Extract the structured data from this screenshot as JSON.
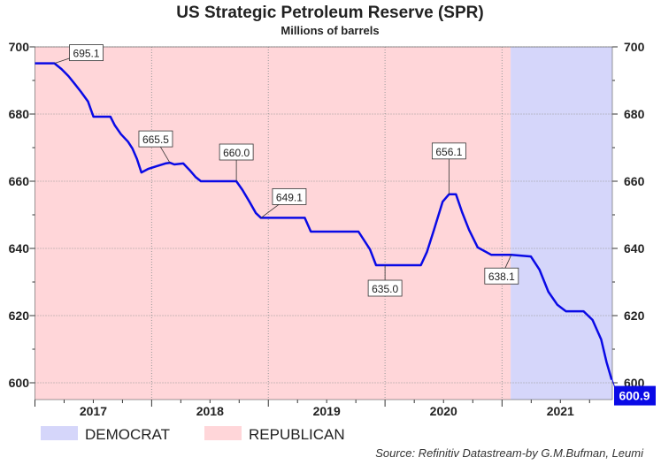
{
  "chart_data": {
    "type": "line",
    "title": "US Strategic Petroleum Reserve (SPR)",
    "subtitle": "Millions of barrels",
    "source": "Source: Refinitiv Datastream-by G.M.Bufman, Leumi",
    "xlim": [
      "2017-01-01",
      "2021-12-12"
    ],
    "ylim": [
      597,
      700
    ],
    "yticks": [
      600,
      620,
      640,
      660,
      680,
      700
    ],
    "xtick_labels": [
      "2017",
      "2018",
      "2019",
      "2020",
      "2021"
    ],
    "grid": true,
    "legend_position": "bottom-left",
    "line_color": "#0a0ae6",
    "shading": [
      {
        "name": "REPUBLICAN",
        "start": "2017-01-01",
        "end": "2021-01-28",
        "color": "#ffd6d9"
      },
      {
        "name": "DEMOCRAT",
        "start": "2021-01-28",
        "end": "2021-12-12",
        "color": "#d5d6fa"
      }
    ],
    "series": [
      {
        "points": [
          [
            "2017-01-01",
            695.1
          ],
          [
            "2017-03-03",
            695.1
          ],
          [
            "2017-03-25",
            693.4
          ],
          [
            "2017-04-16",
            691.3
          ],
          [
            "2017-05-06",
            688.9
          ],
          [
            "2017-05-25",
            686.6
          ],
          [
            "2017-06-16",
            683.7
          ],
          [
            "2017-07-03",
            679.2
          ],
          [
            "2017-08-25",
            679.2
          ],
          [
            "2017-09-08",
            676.6
          ],
          [
            "2017-09-27",
            674.0
          ],
          [
            "2017-10-19",
            671.8
          ],
          [
            "2017-11-02",
            669.7
          ],
          [
            "2017-11-16",
            666.6
          ],
          [
            "2017-11-30",
            662.6
          ],
          [
            "2017-12-22",
            663.7
          ],
          [
            "2018-01-17",
            664.5
          ],
          [
            "2018-02-13",
            665.3
          ],
          [
            "2018-02-27",
            665.5
          ],
          [
            "2018-03-13",
            665.0
          ],
          [
            "2018-04-10",
            665.3
          ],
          [
            "2018-04-29",
            663.4
          ],
          [
            "2018-05-18",
            661.3
          ],
          [
            "2018-06-04",
            660.0
          ],
          [
            "2018-09-23",
            660.0
          ],
          [
            "2018-10-12",
            657.4
          ],
          [
            "2018-11-03",
            653.9
          ],
          [
            "2018-11-23",
            650.5
          ],
          [
            "2018-12-09",
            649.1
          ],
          [
            "2019-04-25",
            649.1
          ],
          [
            "2019-05-14",
            645.0
          ],
          [
            "2019-10-10",
            645.0
          ],
          [
            "2019-11-15",
            639.7
          ],
          [
            "2019-12-04",
            635.0
          ],
          [
            "2020-04-22",
            635.0
          ],
          [
            "2020-05-11",
            638.9
          ],
          [
            "2020-06-02",
            645.5
          ],
          [
            "2020-06-29",
            653.9
          ],
          [
            "2020-07-19",
            656.1
          ],
          [
            "2020-08-10",
            656.1
          ],
          [
            "2020-08-29",
            650.8
          ],
          [
            "2020-09-20",
            645.5
          ],
          [
            "2020-10-17",
            640.3
          ],
          [
            "2020-11-28",
            638.1
          ],
          [
            "2021-01-30",
            638.1
          ],
          [
            "2021-04-01",
            637.6
          ],
          [
            "2021-04-28",
            633.7
          ],
          [
            "2021-05-26",
            627.1
          ],
          [
            "2021-06-23",
            623.2
          ],
          [
            "2021-07-20",
            621.3
          ],
          [
            "2021-09-13",
            621.3
          ],
          [
            "2021-10-11",
            618.7
          ],
          [
            "2021-11-07",
            612.9
          ],
          [
            "2021-11-24",
            606.1
          ],
          [
            "2021-12-10",
            600.9
          ]
        ]
      }
    ],
    "annotations": [
      {
        "label": "695.1",
        "date": "2017-03-03",
        "value": 695.1
      },
      {
        "label": "665.5",
        "date": "2018-02-27",
        "value": 665.5
      },
      {
        "label": "660.0",
        "date": "2018-09-23",
        "value": 660.0
      },
      {
        "label": "649.1",
        "date": "2018-12-09",
        "value": 649.1
      },
      {
        "label": "635.0",
        "date": "2020-01-01",
        "value": 635.0
      },
      {
        "label": "656.1",
        "date": "2020-07-19",
        "value": 656.1
      },
      {
        "label": "638.1",
        "date": "2021-01-30",
        "value": 638.1
      }
    ],
    "last_value_label": "600.9"
  }
}
